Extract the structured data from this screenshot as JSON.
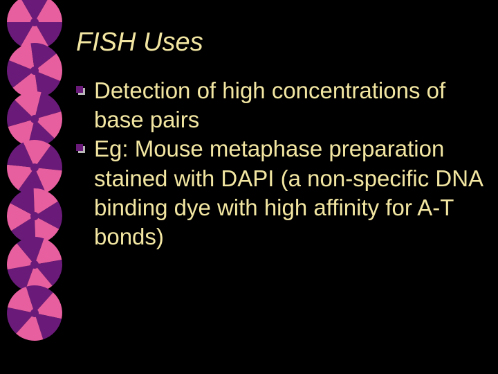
{
  "slide": {
    "background_color": "#000000",
    "text_color": "#f2e6a2",
    "title": "FISH Uses",
    "title_fontsize": 38,
    "title_style": "italic",
    "body_fontsize": 33,
    "bullets": [
      {
        "text": "Detection of high concentrations of base pairs"
      },
      {
        "text": "Eg: Mouse metaphase preparation stained with DAPI (a non-specific DNA binding dye with high affinity for A-T bonds)"
      }
    ],
    "bullet_marker": {
      "type": "shadowed-square",
      "fill": "#6a1b7a",
      "shadow": "#b9b9b9",
      "size": 14
    },
    "decoration": {
      "type": "spiral-column",
      "swirl_count": 7,
      "swirl_top_start": -10,
      "swirl_spacing": 70,
      "rotation_start_deg": 0,
      "rotation_step_deg": 22,
      "colors": {
        "dark": "#6a1b7a",
        "light": "#e85fa0"
      }
    }
  }
}
